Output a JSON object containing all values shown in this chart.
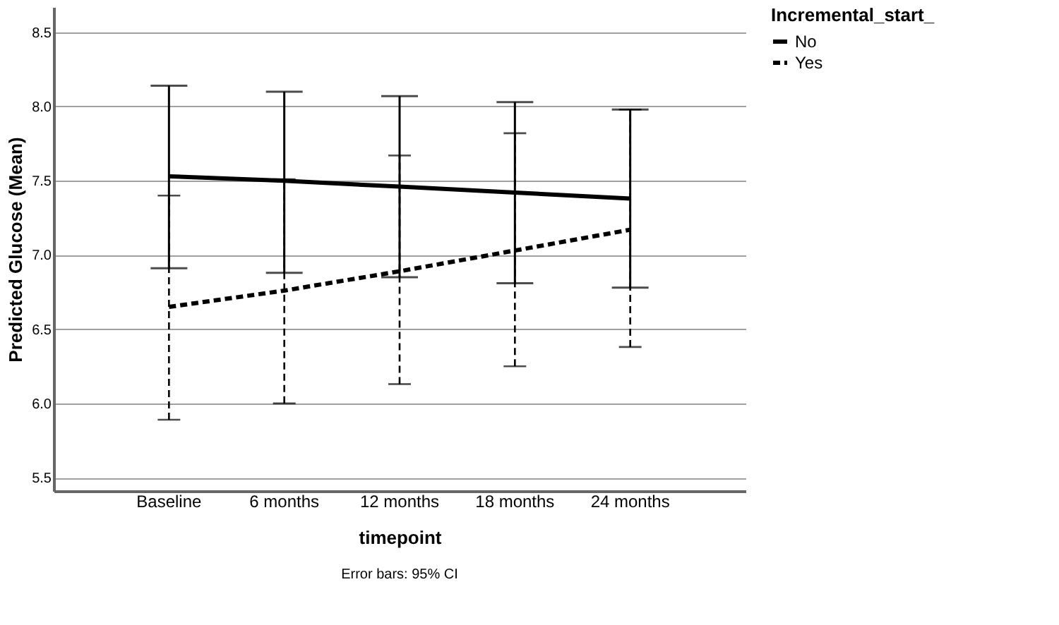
{
  "chart_data": {
    "type": "line",
    "xlabel": "timepoint",
    "ylabel": "Predicted Glucose (Mean)",
    "legend_title": "Incremental_start_",
    "categories": [
      "Baseline",
      "6 months",
      "12 months",
      "18 months",
      "24 months"
    ],
    "series": [
      {
        "name": "No",
        "color": "#000000",
        "line_style": "solid",
        "values": [
          7.53,
          7.5,
          7.46,
          7.42,
          7.38
        ],
        "errors": [
          [
            6.91,
            8.14
          ],
          [
            6.88,
            8.1
          ],
          [
            6.85,
            8.07
          ],
          [
            6.81,
            8.03
          ],
          [
            6.78,
            7.98
          ]
        ]
      },
      {
        "name": "Yes",
        "color": "#000000",
        "line_style": "dashed",
        "values": [
          6.65,
          6.76,
          6.89,
          7.03,
          7.17
        ],
        "errors": [
          [
            5.89,
            7.4
          ],
          [
            6.0,
            7.51
          ],
          [
            6.13,
            7.67
          ],
          [
            6.25,
            7.82
          ],
          [
            6.38,
            7.98
          ]
        ]
      }
    ],
    "ylim": [
      5.41,
      8.67
    ],
    "yticks": [
      5.5,
      {
        "value": 6,
        "label": "6.0"
      },
      6.5,
      {
        "value": 7,
        "label": "7.0"
      },
      7.5,
      {
        "value": 8,
        "label": "8.0"
      },
      8.5
    ],
    "grid": "y",
    "legend": "top right",
    "marker": "none",
    "annotations": [
      "Error bars: 95% CI"
    ]
  }
}
